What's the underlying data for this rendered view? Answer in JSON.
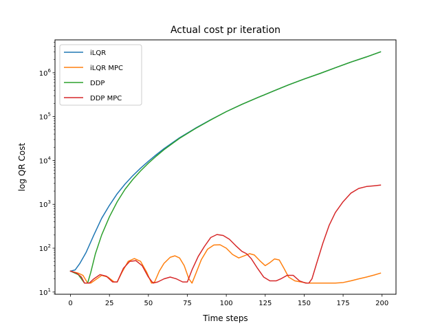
{
  "chart_data": {
    "type": "line",
    "title": "Actual cost pr iteration",
    "xlabel": "Time steps",
    "ylabel": "log QR Cost",
    "xlim": [
      -9.95,
      208.95
    ],
    "ylim_log10": [
      0.95,
      6.75
    ],
    "yscale": "log",
    "grid": false,
    "legend_position": "top-left",
    "x_ticks": [
      0,
      25,
      50,
      75,
      100,
      125,
      150,
      175,
      200
    ],
    "y_ticks": [
      {
        "exp": 1,
        "label": "10",
        "sup": "1"
      },
      {
        "exp": 2,
        "label": "10",
        "sup": "2"
      },
      {
        "exp": 3,
        "label": "10",
        "sup": "3"
      },
      {
        "exp": 4,
        "label": "10",
        "sup": "4"
      },
      {
        "exp": 5,
        "label": "10",
        "sup": "5"
      },
      {
        "exp": 6,
        "label": "10",
        "sup": "6"
      }
    ],
    "series": [
      {
        "name": "iLQR",
        "color": "#1f77b4",
        "points": [
          [
            0,
            30
          ],
          [
            3,
            32
          ],
          [
            6,
            45
          ],
          [
            10,
            80
          ],
          [
            15,
            200
          ],
          [
            20,
            480
          ],
          [
            25,
            950
          ],
          [
            30,
            1750
          ],
          [
            35,
            2900
          ],
          [
            40,
            4500
          ],
          [
            45,
            6700
          ],
          [
            50,
            9600
          ],
          [
            55,
            13500
          ],
          [
            60,
            18600
          ],
          [
            70,
            33000
          ],
          [
            80,
            54000
          ],
          [
            90,
            85000
          ],
          [
            100,
            130000
          ],
          [
            110,
            190000
          ],
          [
            120,
            270000
          ],
          [
            130,
            380000
          ],
          [
            140,
            530000
          ],
          [
            150,
            720000
          ],
          [
            160,
            960000
          ],
          [
            170,
            1300000
          ],
          [
            180,
            1750000
          ],
          [
            190,
            2300000
          ],
          [
            199,
            3000000
          ]
        ]
      },
      {
        "name": "iLQR MPC",
        "color": "#ff7f0e",
        "points": [
          [
            0,
            30
          ],
          [
            5,
            27
          ],
          [
            8,
            24
          ],
          [
            11,
            16
          ],
          [
            13,
            16
          ],
          [
            16,
            19
          ],
          [
            20,
            24
          ],
          [
            24,
            22
          ],
          [
            28,
            17
          ],
          [
            30,
            17
          ],
          [
            33,
            28
          ],
          [
            37,
            50
          ],
          [
            41,
            58
          ],
          [
            45,
            50
          ],
          [
            49,
            28
          ],
          [
            52,
            16
          ],
          [
            54,
            17
          ],
          [
            57,
            30
          ],
          [
            60,
            45
          ],
          [
            64,
            62
          ],
          [
            67,
            67
          ],
          [
            70,
            60
          ],
          [
            73,
            40
          ],
          [
            76,
            20
          ],
          [
            78,
            16
          ],
          [
            80,
            24
          ],
          [
            84,
            55
          ],
          [
            88,
            95
          ],
          [
            92,
            118
          ],
          [
            96,
            120
          ],
          [
            100,
            100
          ],
          [
            104,
            72
          ],
          [
            108,
            60
          ],
          [
            112,
            68
          ],
          [
            115,
            75
          ],
          [
            118,
            70
          ],
          [
            122,
            50
          ],
          [
            125,
            40
          ],
          [
            128,
            47
          ],
          [
            131,
            57
          ],
          [
            134,
            54
          ],
          [
            137,
            35
          ],
          [
            140,
            22
          ],
          [
            144,
            18
          ],
          [
            148,
            17
          ],
          [
            152,
            16
          ],
          [
            160,
            16
          ],
          [
            170,
            16
          ],
          [
            175,
            16.5
          ],
          [
            180,
            18
          ],
          [
            185,
            20
          ],
          [
            190,
            22
          ],
          [
            195,
            24.5
          ],
          [
            199,
            27
          ]
        ]
      },
      {
        "name": "DDP",
        "color": "#2ca02c",
        "points": [
          [
            0,
            30
          ],
          [
            5,
            25
          ],
          [
            9,
            16
          ],
          [
            11,
            16
          ],
          [
            13,
            28
          ],
          [
            16,
            75
          ],
          [
            20,
            200
          ],
          [
            25,
            520
          ],
          [
            30,
            1150
          ],
          [
            35,
            2200
          ],
          [
            40,
            3700
          ],
          [
            45,
            5800
          ],
          [
            50,
            8700
          ],
          [
            55,
            12500
          ],
          [
            60,
            17600
          ],
          [
            70,
            32000
          ],
          [
            80,
            53000
          ],
          [
            90,
            84000
          ],
          [
            100,
            130000
          ],
          [
            110,
            190000
          ],
          [
            120,
            270000
          ],
          [
            130,
            380000
          ],
          [
            140,
            530000
          ],
          [
            150,
            720000
          ],
          [
            160,
            960000
          ],
          [
            170,
            1300000
          ],
          [
            180,
            1750000
          ],
          [
            190,
            2300000
          ],
          [
            199,
            3000000
          ]
        ]
      },
      {
        "name": "DDP MPC",
        "color": "#d62728",
        "points": [
          [
            0,
            30
          ],
          [
            4,
            27
          ],
          [
            7,
            22
          ],
          [
            9,
            16
          ],
          [
            12,
            16
          ],
          [
            15,
            20
          ],
          [
            19,
            25
          ],
          [
            23,
            23
          ],
          [
            27,
            17
          ],
          [
            30,
            17
          ],
          [
            34,
            35
          ],
          [
            38,
            50
          ],
          [
            42,
            52
          ],
          [
            46,
            40
          ],
          [
            50,
            22
          ],
          [
            53,
            16
          ],
          [
            56,
            17
          ],
          [
            60,
            20
          ],
          [
            64,
            22
          ],
          [
            68,
            20
          ],
          [
            72,
            17
          ],
          [
            75,
            17
          ],
          [
            78,
            32
          ],
          [
            82,
            65
          ],
          [
            86,
            110
          ],
          [
            90,
            175
          ],
          [
            94,
            205
          ],
          [
            98,
            195
          ],
          [
            102,
            160
          ],
          [
            106,
            115
          ],
          [
            110,
            85
          ],
          [
            113,
            75
          ],
          [
            116,
            58
          ],
          [
            120,
            35
          ],
          [
            124,
            22
          ],
          [
            128,
            18
          ],
          [
            132,
            18
          ],
          [
            135,
            20
          ],
          [
            139,
            24
          ],
          [
            143,
            24
          ],
          [
            147,
            18
          ],
          [
            151,
            16
          ],
          [
            153,
            16
          ],
          [
            155,
            20
          ],
          [
            158,
            45
          ],
          [
            162,
            130
          ],
          [
            166,
            330
          ],
          [
            170,
            650
          ],
          [
            175,
            1150
          ],
          [
            180,
            1800
          ],
          [
            185,
            2300
          ],
          [
            190,
            2550
          ],
          [
            195,
            2650
          ],
          [
            199,
            2750
          ]
        ]
      }
    ]
  }
}
